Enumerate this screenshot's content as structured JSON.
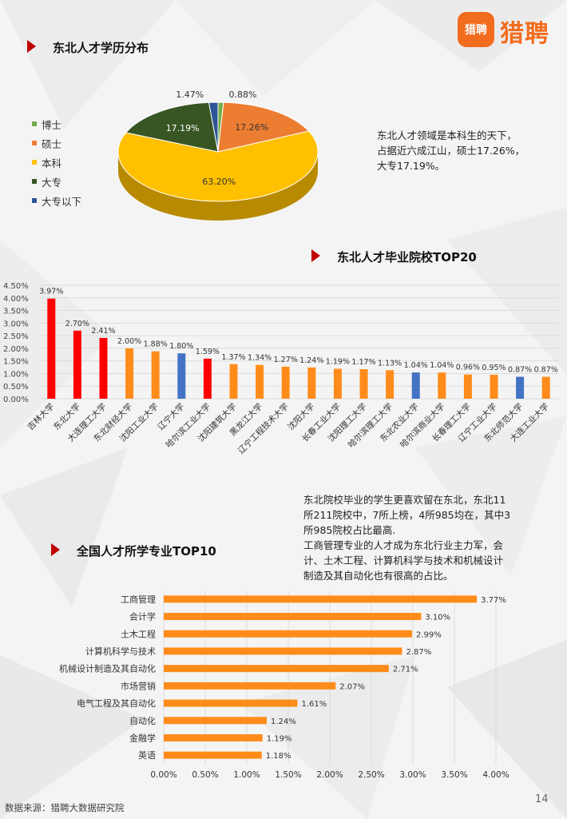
{
  "brand": {
    "logo_badge": "猎聘",
    "logo_name": "猎聘",
    "accent": "#f26c1e"
  },
  "sections": {
    "education": "东北人才学历分布",
    "schools": "东北人才毕业院校TOP20",
    "majors": "全国人才所学专业TOP10"
  },
  "education_text": {
    "lines": [
      "东北人才领域是本科生的天下，",
      "占据近六成江山，硕士17.26%，",
      "大专17.19%。"
    ]
  },
  "schools_text": {
    "lines": [
      "东北院校毕业的学生更喜欢留在东北，东北11",
      "所211院校中，7所上榜，4所985均在，其中3",
      "所985院校占比最高.",
      "工商管理专业的人才成为东北行业主力军，会",
      "计、土木工程、计算机科学与技术和机械设计",
      "制造及其自动化也有很高的占比。"
    ]
  },
  "footer": {
    "source": "数据来源：猎聘大数据研究院",
    "page_number": "14"
  },
  "chart_data": [
    {
      "type": "pie",
      "title": "东北人才学历分布",
      "labels": [
        "博士",
        "硕士",
        "本科",
        "大专",
        "大专以下"
      ],
      "values": [
        0.88,
        17.26,
        63.2,
        17.19,
        1.47
      ],
      "value_labels": [
        "0.88%",
        "17.26%",
        "63.20%",
        "17.19%",
        "1.47%"
      ],
      "colors": [
        "#70ad47",
        "#ed7d31",
        "#ffc000",
        "#375623",
        "#2f5597"
      ],
      "legend": "left"
    },
    {
      "type": "bar",
      "title": "东北人才毕业院校TOP20",
      "categories": [
        "吉林大学",
        "东北大学",
        "大连理工大学",
        "东北财经大学",
        "沈阳工业大学",
        "辽宁大学",
        "哈尔滨工业大学",
        "沈阳建筑大学",
        "黑龙江大学",
        "辽宁工程技术大学",
        "沈阳大学",
        "长春工业大学",
        "沈阳理工大学",
        "哈尔滨理工大学",
        "东北农业大学",
        "哈尔滨商业大学",
        "长春理工大学",
        "辽宁工业大学",
        "东北师范大学",
        "大连工业大学"
      ],
      "values": [
        3.97,
        2.7,
        2.41,
        2.0,
        1.88,
        1.8,
        1.59,
        1.37,
        1.34,
        1.27,
        1.24,
        1.19,
        1.17,
        1.13,
        1.04,
        1.04,
        0.96,
        0.95,
        0.87,
        0.87
      ],
      "value_labels": [
        "3.97%",
        "2.70%",
        "2.41%",
        "2.00%",
        "1.88%",
        "1.80%",
        "1.59%",
        "1.37%",
        "1.34%",
        "1.27%",
        "1.24%",
        "1.19%",
        "1.17%",
        "1.13%",
        "1.04%",
        "1.04%",
        "0.96%",
        "0.95%",
        "0.87%",
        "0.87%"
      ],
      "bar_colors": [
        "#ff0000",
        "#ff0000",
        "#ff0000",
        "#ff8c1a",
        "#ff8c1a",
        "#4472c4",
        "#ff0000",
        "#ff8c1a",
        "#ff8c1a",
        "#ff8c1a",
        "#ff8c1a",
        "#ff8c1a",
        "#ff8c1a",
        "#ff8c1a",
        "#4472c4",
        "#ff8c1a",
        "#ff8c1a",
        "#ff8c1a",
        "#4472c4",
        "#ff8c1a"
      ],
      "ylim": [
        0,
        4.5
      ],
      "yticks": [
        "0.00%",
        "0.50%",
        "1.00%",
        "1.50%",
        "2.00%",
        "2.50%",
        "3.00%",
        "3.50%",
        "4.00%",
        "4.50%"
      ],
      "grid": true
    },
    {
      "type": "bar",
      "orientation": "horizontal",
      "title": "全国人才所学专业TOP10",
      "categories": [
        "工商管理",
        "会计学",
        "土木工程",
        "计算机科学与技术",
        "机械设计制造及其自动化",
        "市场营销",
        "电气工程及其自动化",
        "自动化",
        "金融学",
        "英语"
      ],
      "values": [
        3.77,
        3.1,
        2.99,
        2.87,
        2.71,
        2.07,
        1.61,
        1.24,
        1.19,
        1.18
      ],
      "value_labels": [
        "3.77%",
        "3.10%",
        "2.99%",
        "2.87%",
        "2.71%",
        "2.07%",
        "1.61%",
        "1.24%",
        "1.19%",
        "1.18%"
      ],
      "color": "#ff8c1a",
      "xlim": [
        0,
        4
      ],
      "xticks": [
        "0.00%",
        "0.50%",
        "1.00%",
        "1.50%",
        "2.00%",
        "2.50%",
        "3.00%",
        "3.50%",
        "4.00%"
      ],
      "grid": true
    }
  ]
}
